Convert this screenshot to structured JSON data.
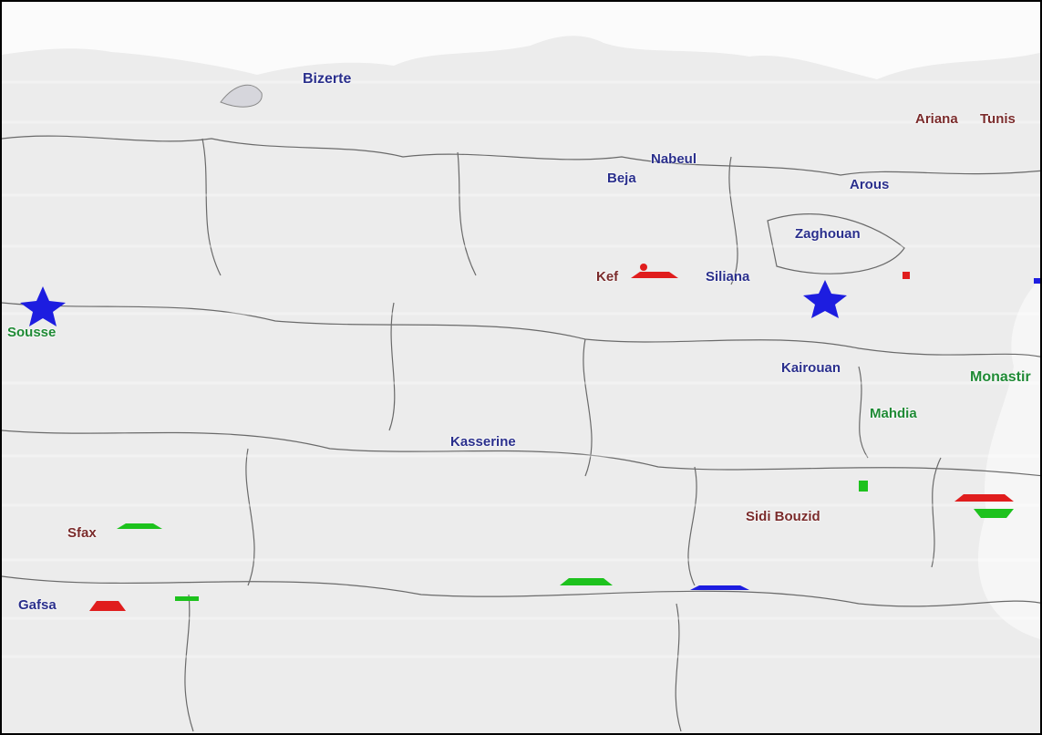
{
  "map": {
    "labels": [
      {
        "id": "bizerte",
        "text": "Bizerte",
        "class": "cap"
      },
      {
        "id": "tunis",
        "text": "Tunis",
        "class": "town"
      },
      {
        "id": "ariana",
        "text": "Ariana",
        "class": "town"
      },
      {
        "id": "arous",
        "text": "Arous",
        "class": "cap"
      },
      {
        "id": "zaghouan",
        "text": "Zaghouan",
        "class": "cap"
      },
      {
        "id": "beja",
        "text": "Beja",
        "class": "cap"
      },
      {
        "id": "nabeul",
        "text": "Nabeul",
        "class": "cap"
      },
      {
        "id": "kef",
        "text": "Kef",
        "class": "town"
      },
      {
        "id": "siliana",
        "text": "Siliana",
        "class": "cap"
      },
      {
        "id": "sousse",
        "text": "Sousse",
        "class": "green"
      },
      {
        "id": "kairouan",
        "text": "Kairouan",
        "class": "cap"
      },
      {
        "id": "monastir",
        "text": "Monastir",
        "class": "green"
      },
      {
        "id": "mahdia",
        "text": "Mahdia",
        "class": "green"
      },
      {
        "id": "kasserine",
        "text": "Kasserine",
        "class": "cap"
      },
      {
        "id": "sidi-bouzid",
        "text": "Sidi Bouzid",
        "class": "town"
      },
      {
        "id": "sfax",
        "text": "Sfax",
        "class": "town"
      },
      {
        "id": "gafsa",
        "text": "Gafsa",
        "class": "cap"
      }
    ],
    "colors": {
      "land": "#e9e9e9",
      "water": "#f7f7f7",
      "border": "#5a5a5a",
      "label_blue": "#2a2f8c",
      "label_red": "#7a2b2b",
      "label_green": "#1f8a35",
      "marker_blue": "#1d1de0",
      "marker_red": "#e01d1d",
      "marker_green": "#1dc21d"
    },
    "markers": [
      "blue-star-marker",
      "red-marker",
      "green-marker"
    ]
  }
}
